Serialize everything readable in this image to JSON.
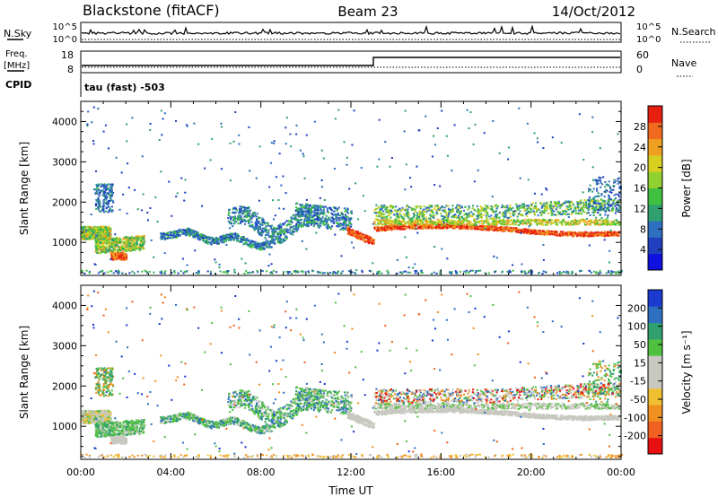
{
  "header": {
    "radar": "Blackstone (fitACF)",
    "beam": "Beam 23",
    "date": "14/Oct/2012"
  },
  "nsky_panel": {
    "left_label": "N.Sky",
    "left_ticks": [
      "10^5",
      "10^0"
    ],
    "right_ticks": [
      "10^5",
      "10^0"
    ],
    "right_label": "N.Search"
  },
  "freq_panel": {
    "left_label_line1": "Freq.",
    "left_label_line2": "[MHz]",
    "left_ticks": [
      "18",
      "8"
    ],
    "right_ticks": [
      "60",
      "0"
    ],
    "right_label": "Nave",
    "cpid_label": "CPID",
    "cpid_text": "tau (fast) -503"
  },
  "chart_data": [
    {
      "type": "heatmap",
      "name": "power-rti",
      "ylabel": "Slant Range [km]",
      "xlabel": "",
      "ylim": [
        180,
        4500
      ],
      "yticks": [
        "1000",
        "2000",
        "3000",
        "4000"
      ],
      "xlim_hours": [
        0,
        24
      ],
      "colorbar": {
        "label": "Power [dB]",
        "ticks": [
          "28",
          "24",
          "20",
          "16",
          "12",
          "8",
          "4"
        ],
        "range": [
          0,
          32
        ],
        "colors": [
          "#1010e0",
          "#2040c0",
          "#2f6fc0",
          "#30a070",
          "#40c040",
          "#90d030",
          "#d8d020",
          "#f0a020",
          "#f06a20",
          "#e81e10"
        ]
      }
    },
    {
      "type": "heatmap",
      "name": "velocity-rti",
      "ylabel": "Slant Range [km]",
      "xlabel": "Time UT",
      "ylim": [
        180,
        4500
      ],
      "yticks": [
        "1000",
        "2000",
        "3000",
        "4000"
      ],
      "xticks": [
        "00:00",
        "04:00",
        "08:00",
        "12:00",
        "16:00",
        "20:00",
        "00:00"
      ],
      "xlim_hours": [
        0,
        24
      ],
      "colorbar": {
        "label": "Velocity [m s⁻¹]",
        "ticks": [
          "200",
          "100",
          "50",
          "15",
          "-15",
          "-50",
          "-100",
          "-200"
        ],
        "range": [
          -250,
          250
        ],
        "colors": [
          "#e81010",
          "#f06020",
          "#f09020",
          "#f0c030",
          "#c8c8c0",
          "#c8c8c0",
          "#50c040",
          "#30a070",
          "#2f6fc0",
          "#1a3ad0"
        ]
      }
    }
  ]
}
